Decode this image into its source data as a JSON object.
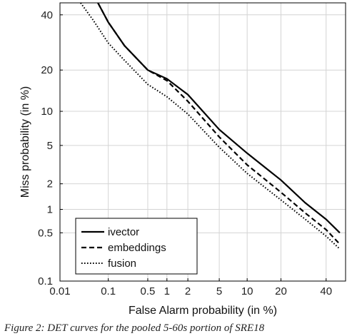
{
  "chart_data": {
    "type": "line",
    "xlabel": "False Alarm probability (in %)",
    "ylabel": "Miss probability (in %)",
    "x_scale": "probit",
    "y_scale": "probit",
    "xlim": [
      0.01,
      50
    ],
    "ylim": [
      0.1,
      45
    ],
    "x_ticks": [
      {
        "v": 0.01,
        "label": "0.01"
      },
      {
        "v": 0.1,
        "label": "0.1"
      },
      {
        "v": 0.5,
        "label": "0.5"
      },
      {
        "v": 1,
        "label": "1"
      },
      {
        "v": 2,
        "label": "2"
      },
      {
        "v": 5,
        "label": "5"
      },
      {
        "v": 10,
        "label": "10"
      },
      {
        "v": 20,
        "label": "20"
      },
      {
        "v": 40,
        "label": "40"
      }
    ],
    "y_ticks": [
      {
        "v": 0.1,
        "label": "0.1"
      },
      {
        "v": 0.5,
        "label": "0.5"
      },
      {
        "v": 1,
        "label": "1"
      },
      {
        "v": 2,
        "label": "2"
      },
      {
        "v": 5,
        "label": "5"
      },
      {
        "v": 10,
        "label": "10"
      },
      {
        "v": 20,
        "label": "20"
      },
      {
        "v": 40,
        "label": "40"
      }
    ],
    "grid": true,
    "legend": "bottom-left",
    "series": [
      {
        "name": "ivector",
        "style": "solid",
        "points": [
          [
            0.063,
            45
          ],
          [
            0.1,
            37
          ],
          [
            0.2,
            28
          ],
          [
            0.5,
            20
          ],
          [
            1,
            17.5
          ],
          [
            2,
            13.5
          ],
          [
            5,
            7
          ],
          [
            10,
            4.2
          ],
          [
            20,
            2.2
          ],
          [
            30,
            1.2
          ],
          [
            40,
            0.75
          ],
          [
            47,
            0.5
          ]
        ]
      },
      {
        "name": "embeddings",
        "style": "dashed",
        "points": [
          [
            0.063,
            45
          ],
          [
            0.1,
            37
          ],
          [
            0.2,
            28
          ],
          [
            0.5,
            20
          ],
          [
            1,
            17
          ],
          [
            2,
            12
          ],
          [
            5,
            6
          ],
          [
            10,
            3.2
          ],
          [
            20,
            1.6
          ],
          [
            30,
            0.9
          ],
          [
            40,
            0.55
          ],
          [
            47,
            0.35
          ]
        ]
      },
      {
        "name": "fusion",
        "style": "dotted",
        "points": [
          [
            0.028,
            45
          ],
          [
            0.05,
            38
          ],
          [
            0.1,
            29
          ],
          [
            0.2,
            23
          ],
          [
            0.5,
            16
          ],
          [
            1,
            13
          ],
          [
            2,
            9.5
          ],
          [
            5,
            4.8
          ],
          [
            10,
            2.6
          ],
          [
            20,
            1.3
          ],
          [
            30,
            0.75
          ],
          [
            40,
            0.45
          ],
          [
            47,
            0.3
          ]
        ]
      }
    ]
  },
  "caption": {
    "text": "Figure 2: DET curves for the pooled 5-60s portion of SRE18"
  }
}
